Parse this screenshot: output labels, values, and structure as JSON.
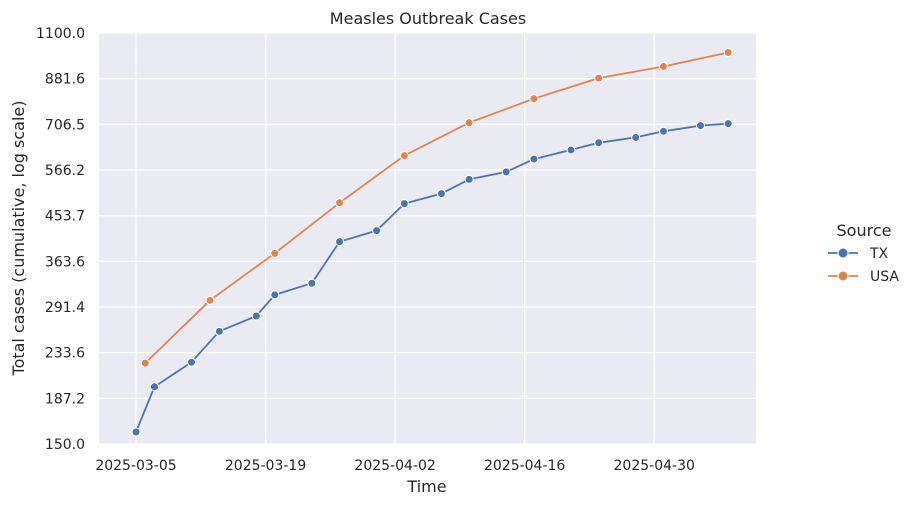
{
  "chart_data": {
    "type": "line",
    "title": "Measles Outbreak Cases",
    "xlabel": "Time",
    "ylabel": "Total cases (cumulative, log scale)",
    "yscale": "log",
    "ylim": [
      150.0,
      1100.0
    ],
    "yticks": [
      "150.0",
      "187.2",
      "233.6",
      "291.4",
      "363.6",
      "453.7",
      "566.2",
      "706.5",
      "881.6",
      "1100.0"
    ],
    "xlim": [
      "2025-03-01",
      "2025-05-11"
    ],
    "xticks": [
      "2025-03-05",
      "2025-03-19",
      "2025-04-02",
      "2025-04-16",
      "2025-04-30"
    ],
    "grid": true,
    "legend": {
      "title": "Source",
      "placement": "right"
    },
    "series": [
      {
        "name": "TX",
        "color": "#4c72b0",
        "x": [
          "2025-03-05",
          "2025-03-07",
          "2025-03-11",
          "2025-03-14",
          "2025-03-18",
          "2025-03-20",
          "2025-03-24",
          "2025-03-27",
          "2025-03-31",
          "2025-04-03",
          "2025-04-07",
          "2025-04-10",
          "2025-04-14",
          "2025-04-17",
          "2025-04-21",
          "2025-04-24",
          "2025-04-28",
          "2025-05-01",
          "2025-05-05",
          "2025-05-08"
        ],
        "y": [
          159,
          198,
          223,
          259,
          279,
          309,
          327,
          400,
          422,
          481,
          505,
          541,
          561,
          597,
          624,
          646,
          663,
          683,
          702,
          709
        ]
      },
      {
        "name": "USA",
        "color": "#dd8452",
        "x": [
          "2025-03-06",
          "2025-03-13",
          "2025-03-20",
          "2025-03-27",
          "2025-04-03",
          "2025-04-10",
          "2025-04-17",
          "2025-04-24",
          "2025-05-01",
          "2025-05-08"
        ],
        "y": [
          222,
          301,
          378,
          483,
          607,
          712,
          800,
          884,
          935,
          1001
        ]
      }
    ]
  }
}
